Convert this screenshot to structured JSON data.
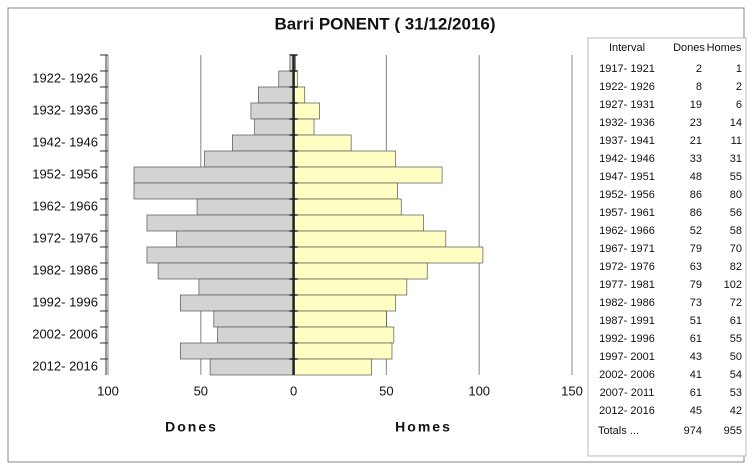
{
  "chart_data": {
    "type": "pyramid",
    "title": "Barri PONENT ( 31/12/2016)",
    "categories": [
      "1917- 1921",
      "1922- 1926",
      "1927- 1931",
      "1932- 1936",
      "1937- 1941",
      "1942- 1946",
      "1947- 1951",
      "1952- 1956",
      "1957- 1961",
      "1962- 1966",
      "1967- 1971",
      "1972- 1976",
      "1977- 1981",
      "1982- 1986",
      "1987- 1991",
      "1992- 1996",
      "1997- 2001",
      "2002- 2006",
      "2007- 2011",
      "2012- 2016"
    ],
    "series": [
      {
        "name": "Dones",
        "color": "#d3d3d3",
        "values": [
          2,
          8,
          19,
          23,
          21,
          33,
          48,
          86,
          86,
          52,
          79,
          63,
          79,
          73,
          51,
          61,
          43,
          41,
          61,
          45
        ]
      },
      {
        "name": "Homes",
        "color": "#ffffc4",
        "values": [
          1,
          2,
          6,
          14,
          11,
          31,
          55,
          80,
          56,
          58,
          70,
          82,
          102,
          72,
          61,
          55,
          50,
          54,
          53,
          42
        ]
      }
    ],
    "xlim": [
      -100,
      150
    ],
    "xticks": [
      {
        "value": -100,
        "label": "100"
      },
      {
        "value": -50,
        "label": "50"
      },
      0,
      50,
      100,
      150
    ],
    "grid": true,
    "table": {
      "header": [
        "Interval",
        "Dones",
        "Homes"
      ],
      "totals": [
        "Totals ...",
        974,
        955
      ]
    }
  }
}
